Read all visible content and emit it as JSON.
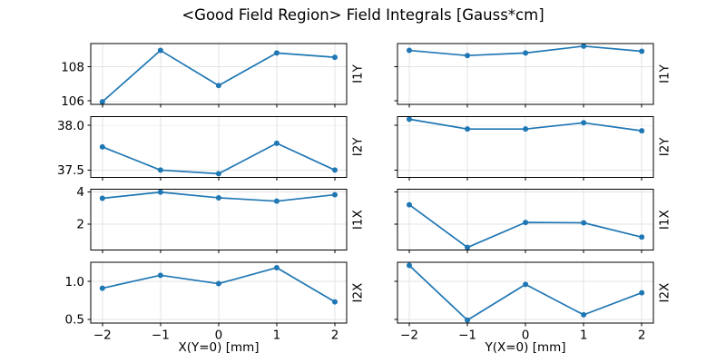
{
  "chart_data": {
    "type": "line",
    "title": "<Good Field Region> Field Integrals [Gauss*cm]",
    "x": [
      -2,
      -1,
      0,
      1,
      2
    ],
    "x_tick_labels": [
      "−2",
      "−1",
      "0",
      "1",
      "2"
    ],
    "xlim": [
      -2.2,
      2.2
    ],
    "grid": true,
    "legend": false,
    "line_color": "#1f77b4",
    "grid_color": "#e3e3e3",
    "spine_color": "#000000",
    "text_color": "#000000",
    "axes_bg": "#ffffff",
    "columns": [
      {
        "xlabel": "X(Y=0) [mm]",
        "series_key": "left"
      },
      {
        "xlabel": "Y(X=0) [mm]",
        "series_key": "right"
      }
    ],
    "rows": [
      {
        "label": "I1Y",
        "ylim": [
          105.8,
          109.35
        ],
        "yticks": [
          106,
          108
        ],
        "ytick_labels": [
          "106",
          "108"
        ],
        "left": [
          105.95,
          108.95,
          106.9,
          108.8,
          108.55
        ],
        "right": [
          108.95,
          108.65,
          108.8,
          109.2,
          108.9
        ]
      },
      {
        "label": "I2Y",
        "ylim": [
          37.42,
          38.1
        ],
        "yticks": [
          37.5,
          38.0
        ],
        "ytick_labels": [
          "37.5",
          "38.0"
        ],
        "left": [
          37.76,
          37.5,
          37.46,
          37.8,
          37.5
        ],
        "right": [
          38.07,
          37.96,
          37.96,
          38.03,
          37.94
        ]
      },
      {
        "label": "I1X",
        "ylim": [
          0.38,
          4.15
        ],
        "yticks": [
          2,
          4
        ],
        "ytick_labels": [
          "2",
          "4"
        ],
        "left": [
          3.6,
          3.98,
          3.63,
          3.42,
          3.82
        ],
        "right": [
          3.2,
          0.55,
          2.1,
          2.08,
          1.19
        ]
      },
      {
        "label": "I2X",
        "ylim": [
          0.45,
          1.25
        ],
        "yticks": [
          0.5,
          1.0
        ],
        "ytick_labels": [
          "0.5",
          "1.0"
        ],
        "left": [
          0.91,
          1.08,
          0.97,
          1.18,
          0.73
        ],
        "right": [
          1.21,
          0.49,
          0.96,
          0.56,
          0.85
        ]
      }
    ]
  }
}
